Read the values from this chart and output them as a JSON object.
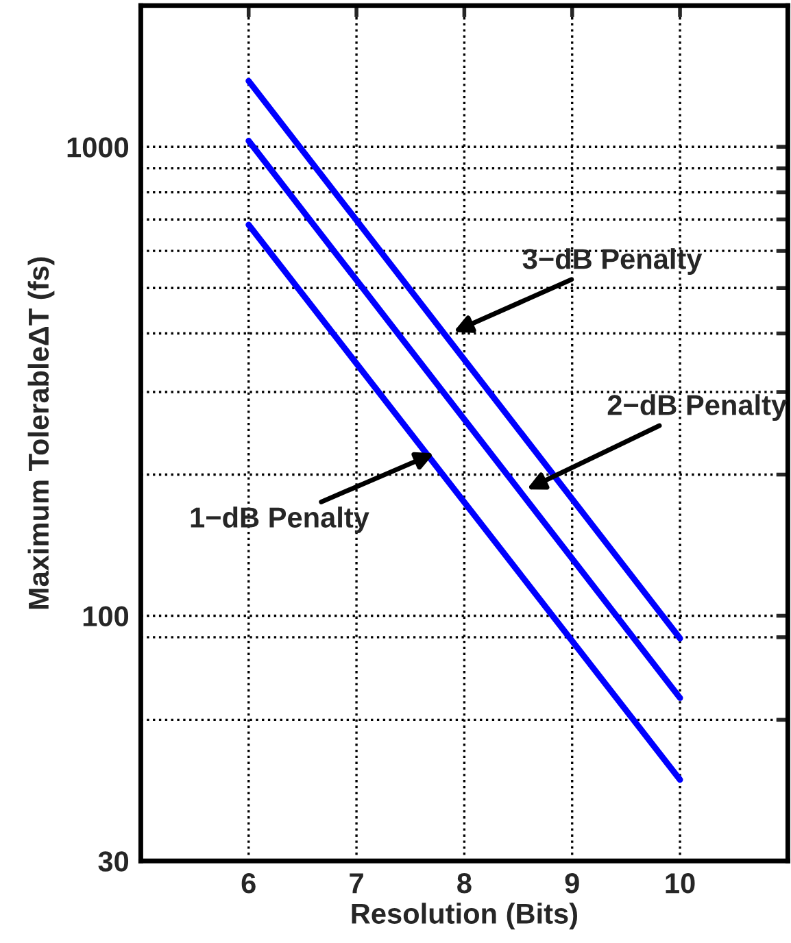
{
  "chart_data": {
    "type": "line",
    "xlabel": "Resolution (Bits)",
    "ylabel": "Maximum TolerableΔT (fs)",
    "x": [
      6,
      10
    ],
    "series": [
      {
        "color": "#0000ff",
        "values": [
          682,
          44.7
        ]
      },
      {
        "color": "#0000ff",
        "values": [
          1030,
          66.8
        ]
      },
      {
        "color": "#0000ff",
        "values": [
          1382,
          89.5
        ]
      }
    ],
    "annotations": [
      {
        "text": "3−dB Penalty",
        "x": 7.9,
        "y": 403
      },
      {
        "text": "2−dB Penalty",
        "x": 8.58,
        "y": 186
      },
      {
        "text": "1−dB Penalty",
        "x": 7.72,
        "y": 222
      }
    ],
    "log": "y",
    "xlim": [
      5,
      11
    ],
    "ylim": [
      30,
      2000
    ],
    "xticks": [
      6,
      7,
      8,
      9,
      10
    ],
    "yticks": [
      30,
      {
        "value": 60,
        "label": null
      },
      {
        "value": 90,
        "label": null
      },
      100,
      {
        "value": 200,
        "label": null
      },
      {
        "value": 300,
        "label": null
      },
      {
        "value": 400,
        "label": null
      },
      {
        "value": 500,
        "label": null
      },
      {
        "value": 600,
        "label": null
      },
      {
        "value": 700,
        "label": null
      },
      {
        "value": 800,
        "label": null
      },
      {
        "value": 900,
        "label": null
      },
      1000
    ],
    "grid": true
  }
}
